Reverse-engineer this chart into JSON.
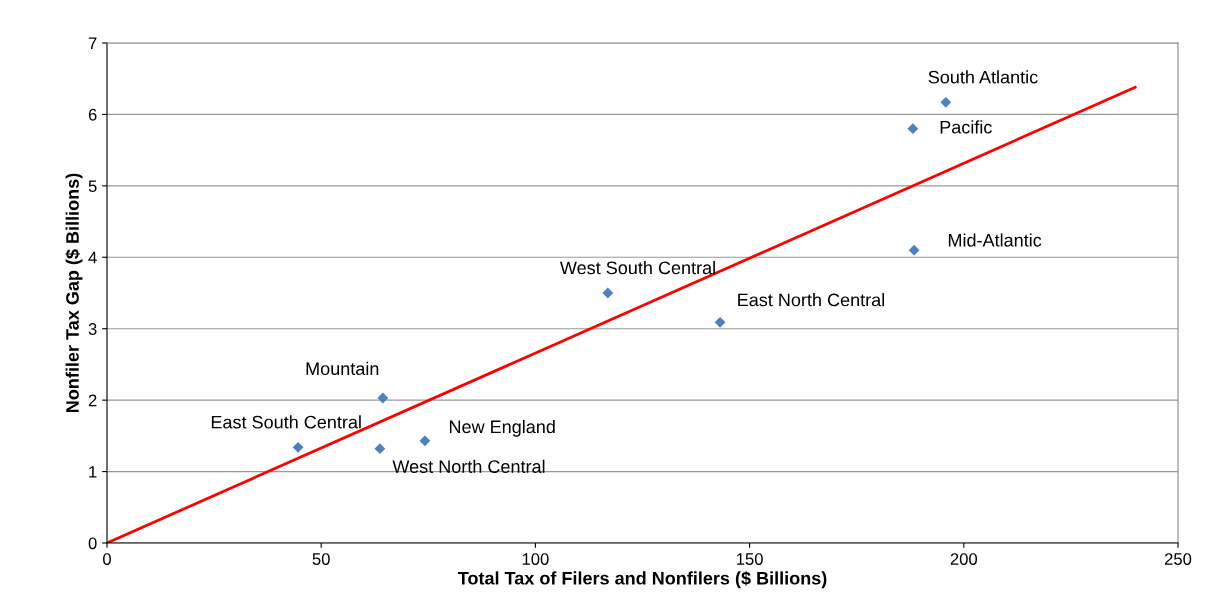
{
  "chart_data": {
    "type": "scatter",
    "xlabel": "Total Tax of Filers and Nonfilers ($ Billions)",
    "ylabel": "Nonfiler Tax Gap ($ Billions)",
    "series": [
      {
        "color": "#4f81bd",
        "marker": "diamond",
        "x": [
          195.8,
          188.1,
          188.4,
          116.9,
          143.1,
          64.4,
          74.2,
          63.7,
          44.6
        ],
        "values": [
          6.17,
          5.8,
          4.1,
          3.5,
          3.09,
          2.03,
          1.43,
          1.32,
          1.34
        ]
      },
      {
        "type": "line",
        "color": "#ff0000",
        "marker": "none",
        "line_style": "solid",
        "x": [
          0,
          240
        ],
        "values": [
          0,
          6.38
        ]
      }
    ],
    "annotations": [
      {
        "text": "South Atlantic",
        "x": 195.8,
        "y": 6.17
      },
      {
        "text": "Pacific",
        "x": 188.1,
        "y": 5.8
      },
      {
        "text": "Mid-Atlantic",
        "x": 188.4,
        "y": 4.1
      },
      {
        "text": "West South Central",
        "x": 116.9,
        "y": 3.5
      },
      {
        "text": "East North Central",
        "x": 143.1,
        "y": 3.09
      },
      {
        "text": "Mountain",
        "x": 64.4,
        "y": 2.03
      },
      {
        "text": "New England",
        "x": 74.2,
        "y": 1.43
      },
      {
        "text": "West North Central",
        "x": 63.7,
        "y": 1.32
      },
      {
        "text": "East South Central",
        "x": 44.6,
        "y": 1.34
      }
    ],
    "xlim": [
      0,
      250
    ],
    "xticks": [
      0,
      50,
      100,
      150,
      200,
      250
    ],
    "ylim": [
      0,
      7
    ],
    "yticks": [
      0,
      1,
      2,
      3,
      4,
      5,
      6,
      7
    ],
    "grid": "y",
    "legend": false
  }
}
